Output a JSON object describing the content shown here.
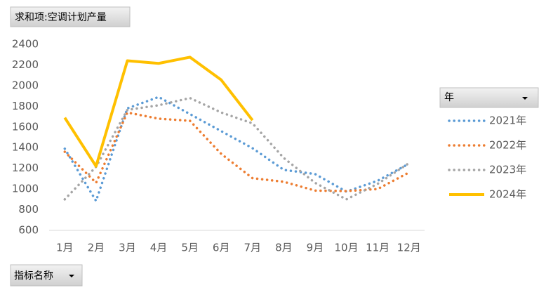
{
  "chart_data": {
    "type": "line",
    "value_field_button": "求和项:空调计划产量",
    "axis_field_button": "指标名称",
    "legend_title": "年",
    "categories": [
      "1月",
      "2月",
      "3月",
      "4月",
      "5月",
      "6月",
      "7月",
      "8月",
      "9月",
      "10月",
      "11月",
      "12月"
    ],
    "series": [
      {
        "name": "2021年",
        "color": "#5b9bd5",
        "dash": "dotted",
        "values": [
          1390,
          885,
          1780,
          1890,
          1725,
          1560,
          1395,
          1185,
          1145,
          975,
          1080,
          1245
        ]
      },
      {
        "name": "2022年",
        "color": "#ed7d31",
        "dash": "dotted",
        "values": [
          1360,
          1060,
          1740,
          1680,
          1660,
          1340,
          1105,
          1070,
          985,
          980,
          1000,
          1160
        ]
      },
      {
        "name": "2023年",
        "color": "#a5a5a5",
        "dash": "dotted",
        "values": [
          900,
          1215,
          1765,
          1810,
          1880,
          1740,
          1635,
          1300,
          1060,
          900,
          1050,
          1250
        ]
      },
      {
        "name": "2024年",
        "color": "#ffc000",
        "dash": "solid",
        "values": [
          1690,
          1220,
          2240,
          2215,
          2275,
          2055,
          1665,
          null,
          null,
          null,
          null,
          null
        ]
      }
    ],
    "ylim": [
      600,
      2400
    ],
    "yticks": [
      600,
      800,
      1000,
      1200,
      1400,
      1600,
      1800,
      2000,
      2200,
      2400
    ],
    "grid": false,
    "legend": "right"
  }
}
